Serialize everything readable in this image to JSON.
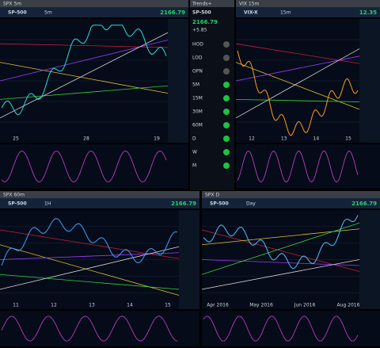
{
  "panels": [
    {
      "title": "SPX 5m",
      "symbol": "SP-500",
      "interval": "5m",
      "price": "2166.79",
      "xlabels": [
        "25",
        "28",
        "19"
      ]
    },
    {
      "title": "VIX 15m",
      "symbol": "VIX-X",
      "interval": "15m",
      "price": "12.35",
      "xlabels": [
        "12",
        "13",
        "14",
        "15"
      ]
    },
    {
      "title": "SPX 60m",
      "symbol": "SP-500",
      "interval": "1H",
      "price": "2166.79",
      "xlabels": [
        "11",
        "12",
        "13",
        "14",
        "15"
      ]
    },
    {
      "title": "SPX D",
      "symbol": "SP-500",
      "interval": "Day",
      "price": "2166.79",
      "xlabels": [
        "Apr 2016",
        "May 2016",
        "Jun 2016",
        "Aug 2016"
      ]
    }
  ],
  "quote": {
    "title": "Trends+",
    "symbol": "SP-500",
    "last": "2166.79",
    "change": "+5.85",
    "rows": [
      "HOD",
      "LOD",
      "OPN",
      "5M",
      "15M",
      "30M",
      "60M",
      "D",
      "W",
      "M"
    ]
  }
}
